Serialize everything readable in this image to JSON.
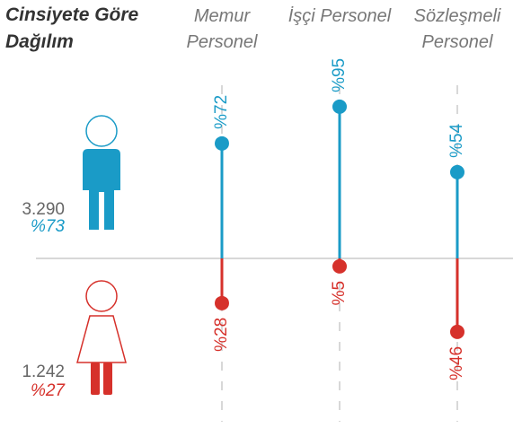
{
  "chart_data": {
    "type": "lollipop",
    "title": "Cinsiyete Göre Dağılım",
    "categories": [
      "Memur Personel",
      "İşçi Personel",
      "Sözleşmeli Personel"
    ],
    "series": [
      {
        "color": "#1a9bc7",
        "values": [
          72,
          95,
          54
        ],
        "value_labels": [
          "%72",
          "%95",
          "%54"
        ],
        "count": {
          "value": 3290,
          "label": "3.290"
        },
        "share": {
          "value": 73,
          "label": "%73"
        }
      },
      {
        "color": "#d6312b",
        "values": [
          28,
          5,
          46
        ],
        "value_labels": [
          "%28",
          "%5",
          "%46"
        ],
        "count": {
          "value": 1242,
          "label": "1.242"
        },
        "share": {
          "value": 27,
          "label": "%27"
        }
      }
    ]
  }
}
